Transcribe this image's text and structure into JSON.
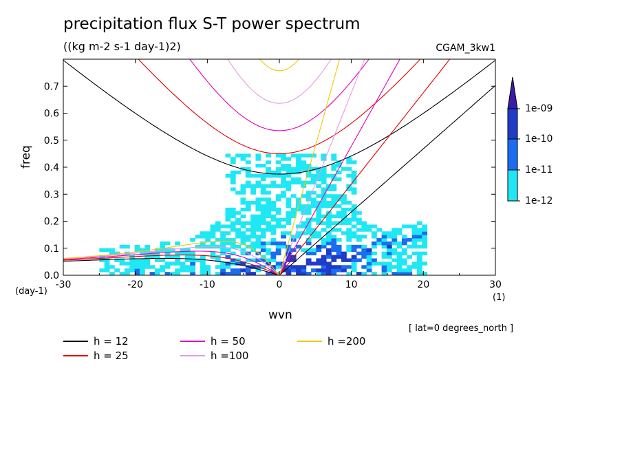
{
  "chart_data": {
    "type": "heatmap",
    "title": "precipitation flux S-T power spectrum",
    "subtitle": "((kg m-2 s-1 day-1)2)",
    "dataset": "CGAM_3kw1",
    "xlabel": "wvn",
    "ylabel": "freq",
    "x_unit": "(1)",
    "y_unit": "(day-1)",
    "region_note": "[ lat=0 degrees_north ]",
    "xlim": [
      -30,
      30
    ],
    "ylim": [
      0,
      0.8
    ],
    "x_ticks": [
      "-30",
      "-20",
      "-10",
      "0",
      "10",
      "20",
      "30"
    ],
    "y_ticks": [
      "0.0",
      "0.1",
      "0.2",
      "0.3",
      "0.4",
      "0.5",
      "0.6",
      "0.7"
    ],
    "colorbar": {
      "labels": [
        "1e-09",
        "1e-10",
        "1e-11",
        "1e-12"
      ],
      "colors": [
        "#3a1aa6",
        "#1e3cc8",
        "#1a6cf0",
        "#1fe8f4"
      ]
    },
    "legend": [
      {
        "label": "h = 12",
        "color": "#000000"
      },
      {
        "label": "h = 25",
        "color": "#e00000"
      },
      {
        "label": "h = 50",
        "color": "#e000b4"
      },
      {
        "label": "h =100",
        "color": "#e59ae5"
      },
      {
        "label": "h =200",
        "color": "#f0c800"
      }
    ],
    "dispersion_curves": [
      {
        "h": 12,
        "color": "#000000"
      },
      {
        "h": 25,
        "color": "#e00000"
      },
      {
        "h": 50,
        "color": "#e000b4"
      },
      {
        "h": 100,
        "color": "#e59ae5"
      },
      {
        "h": 200,
        "color": "#f0c800"
      }
    ]
  }
}
